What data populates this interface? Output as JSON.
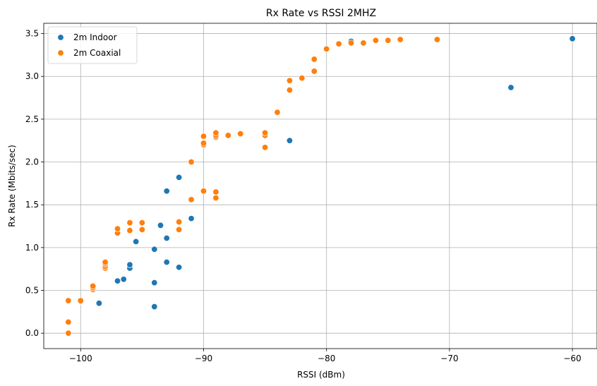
{
  "chart_data": {
    "type": "scatter",
    "title": "Rx Rate vs RSSI 2MHZ",
    "xlabel": "RSSI (dBm)",
    "ylabel": "Rx Rate (Mbits/sec)",
    "xlim": [
      -103,
      -58
    ],
    "ylim": [
      -0.18,
      3.62
    ],
    "xticks": [
      -100,
      -90,
      -80,
      -70,
      -60
    ],
    "xtick_labels": [
      "−100",
      "−90",
      "−80",
      "−70",
      "−60"
    ],
    "yticks": [
      0.0,
      0.5,
      1.0,
      1.5,
      2.0,
      2.5,
      3.0,
      3.5
    ],
    "ytick_labels": [
      "0.0",
      "0.5",
      "1.0",
      "1.5",
      "2.0",
      "2.5",
      "3.0",
      "3.5"
    ],
    "grid": true,
    "legend_position": "top-left",
    "series": [
      {
        "name": "2m Indoor",
        "color": "#1f77b4",
        "points": [
          [
            -98.5,
            0.35
          ],
          [
            -97,
            0.61
          ],
          [
            -96.5,
            0.63
          ],
          [
            -96,
            0.76
          ],
          [
            -96,
            0.8
          ],
          [
            -95.5,
            1.07
          ],
          [
            -94,
            0.31
          ],
          [
            -94,
            0.59
          ],
          [
            -94,
            0.98
          ],
          [
            -93.5,
            1.26
          ],
          [
            -93,
            0.83
          ],
          [
            -93,
            1.11
          ],
          [
            -93,
            1.66
          ],
          [
            -92,
            0.77
          ],
          [
            -92,
            1.82
          ],
          [
            -91,
            1.34
          ],
          [
            -83,
            2.25
          ],
          [
            -78,
            3.41
          ],
          [
            -65,
            2.87
          ],
          [
            -60,
            3.44
          ]
        ]
      },
      {
        "name": "2m Coaxial",
        "color": "#ff7f0e",
        "points": [
          [
            -101,
            0.0
          ],
          [
            -101,
            0.13
          ],
          [
            -101,
            0.38
          ],
          [
            -100,
            0.37
          ],
          [
            -100,
            0.38
          ],
          [
            -99,
            0.51
          ],
          [
            -99,
            0.53
          ],
          [
            -99,
            0.55
          ],
          [
            -98,
            0.76
          ],
          [
            -98,
            0.78
          ],
          [
            -98,
            0.81
          ],
          [
            -98,
            0.83
          ],
          [
            -97,
            1.17
          ],
          [
            -97,
            1.22
          ],
          [
            -96,
            1.2
          ],
          [
            -96,
            1.29
          ],
          [
            -95,
            1.21
          ],
          [
            -95,
            1.29
          ],
          [
            -92,
            1.21
          ],
          [
            -92,
            1.3
          ],
          [
            -91,
            1.56
          ],
          [
            -91,
            2.0
          ],
          [
            -90,
            1.66
          ],
          [
            -90,
            2.2
          ],
          [
            -90,
            2.22
          ],
          [
            -90,
            2.3
          ],
          [
            -89,
            1.58
          ],
          [
            -89,
            1.65
          ],
          [
            -89,
            2.29
          ],
          [
            -89,
            2.31
          ],
          [
            -89,
            2.34
          ],
          [
            -88,
            2.31
          ],
          [
            -87,
            2.33
          ],
          [
            -85,
            2.17
          ],
          [
            -85,
            2.31
          ],
          [
            -85,
            2.34
          ],
          [
            -84,
            2.58
          ],
          [
            -83,
            2.84
          ],
          [
            -83,
            2.95
          ],
          [
            -82,
            2.98
          ],
          [
            -81,
            3.06
          ],
          [
            -81,
            3.2
          ],
          [
            -80,
            3.32
          ],
          [
            -79,
            3.38
          ],
          [
            -78,
            3.39
          ],
          [
            -77,
            3.39
          ],
          [
            -76,
            3.42
          ],
          [
            -75,
            3.42
          ],
          [
            -74,
            3.43
          ],
          [
            -71,
            3.43
          ]
        ]
      }
    ]
  }
}
